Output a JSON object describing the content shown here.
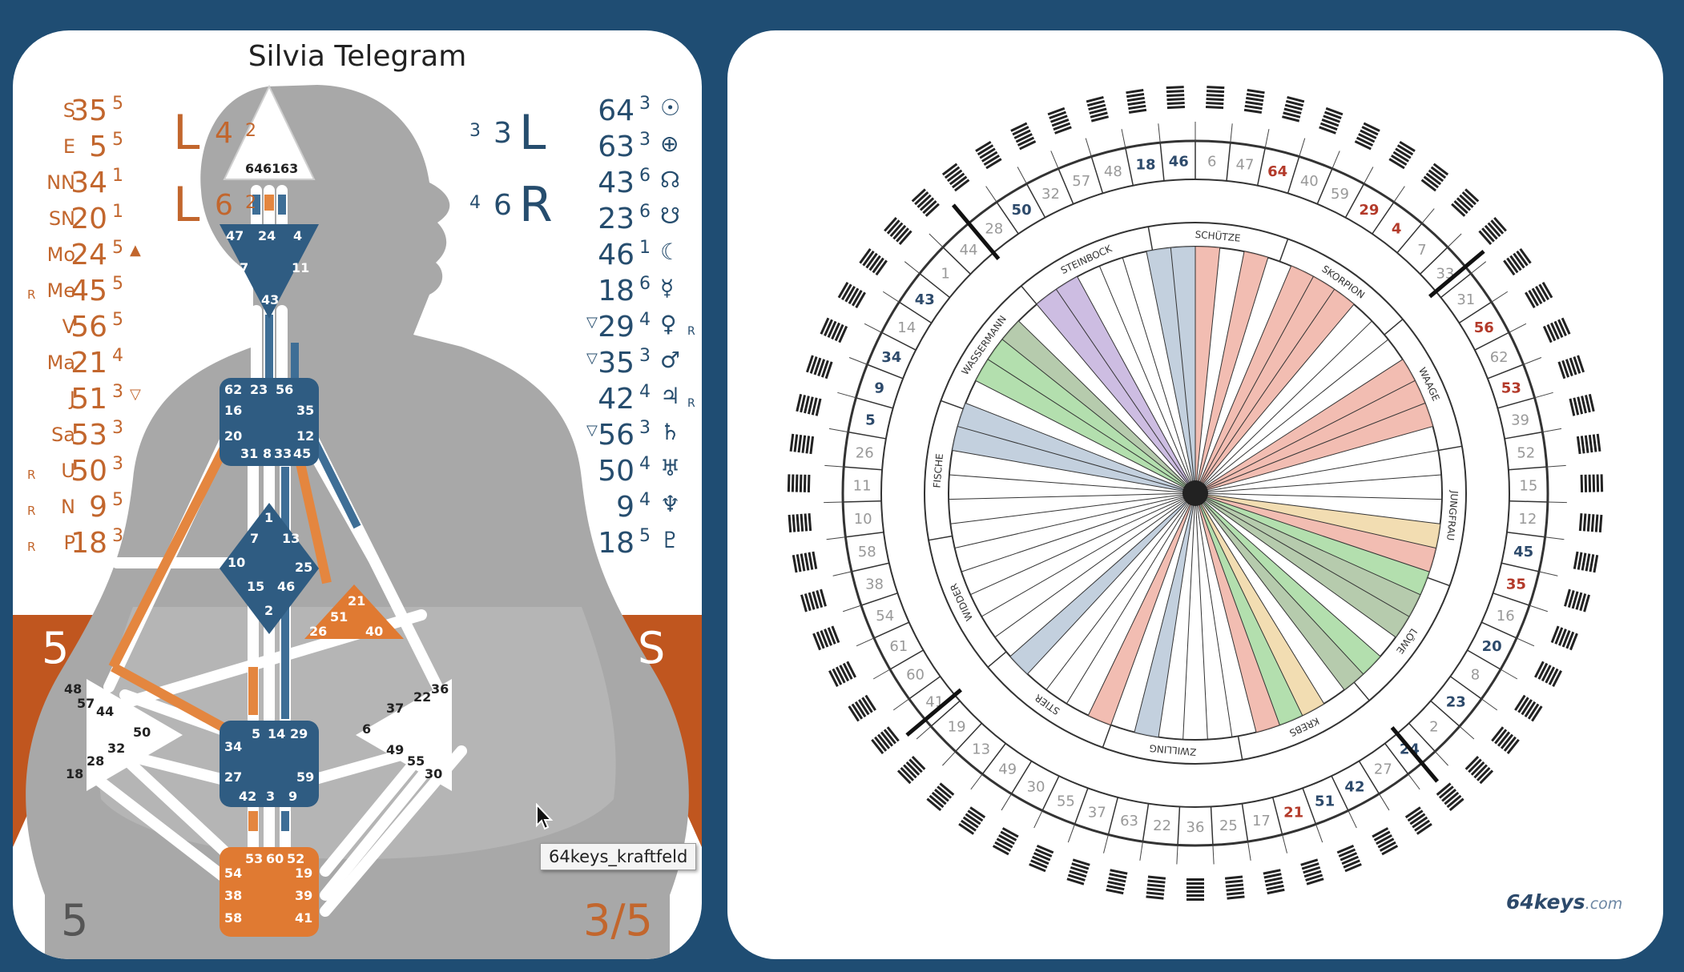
{
  "title": "Silvia Telegram",
  "colors": {
    "personality": "#264d6e",
    "design": "#c2662d",
    "orange_band": "#c0561f",
    "body_grey": "#9a9a9a",
    "background": "#1f4d73"
  },
  "design_column": [
    {
      "prefix": "",
      "planet": "S",
      "gate": "35",
      "line": "5",
      "mark": ""
    },
    {
      "prefix": "",
      "planet": "E",
      "gate": "5",
      "line": "5",
      "mark": ""
    },
    {
      "prefix": "",
      "planet": "NN",
      "gate": "34",
      "line": "1",
      "mark": ""
    },
    {
      "prefix": "",
      "planet": "SN",
      "gate": "20",
      "line": "1",
      "mark": ""
    },
    {
      "prefix": "",
      "planet": "Mo",
      "gate": "24",
      "line": "5",
      "mark": "▲"
    },
    {
      "prefix": "R",
      "planet": "Me",
      "gate": "45",
      "line": "5",
      "mark": ""
    },
    {
      "prefix": "",
      "planet": "V",
      "gate": "56",
      "line": "5",
      "mark": ""
    },
    {
      "prefix": "",
      "planet": "Ma",
      "gate": "21",
      "line": "4",
      "mark": ""
    },
    {
      "prefix": "",
      "planet": "J",
      "gate": "51",
      "line": "3",
      "mark": "▽"
    },
    {
      "prefix": "",
      "planet": "Sa",
      "gate": "53",
      "line": "3",
      "mark": ""
    },
    {
      "prefix": "R",
      "planet": "U",
      "gate": "50",
      "line": "3",
      "mark": ""
    },
    {
      "prefix": "R",
      "planet": "N",
      "gate": "9",
      "line": "5",
      "mark": ""
    },
    {
      "prefix": "R",
      "planet": "P",
      "gate": "18",
      "line": "3",
      "mark": ""
    }
  ],
  "personality_column": [
    {
      "mark": "",
      "gate": "64",
      "line": "3",
      "symbol": "☉",
      "suffix": ""
    },
    {
      "mark": "",
      "gate": "63",
      "line": "3",
      "symbol": "⊕",
      "suffix": ""
    },
    {
      "mark": "",
      "gate": "43",
      "line": "6",
      "symbol": "☊",
      "suffix": ""
    },
    {
      "mark": "",
      "gate": "23",
      "line": "6",
      "symbol": "☋",
      "suffix": ""
    },
    {
      "mark": "",
      "gate": "46",
      "line": "1",
      "symbol": "☾",
      "suffix": ""
    },
    {
      "mark": "",
      "gate": "18",
      "line": "6",
      "symbol": "☿",
      "suffix": ""
    },
    {
      "mark": "▽",
      "gate": "29",
      "line": "4",
      "symbol": "♀",
      "suffix": "R"
    },
    {
      "mark": "▽",
      "gate": "35",
      "line": "3",
      "symbol": "♂",
      "suffix": ""
    },
    {
      "mark": "",
      "gate": "42",
      "line": "4",
      "symbol": "♃",
      "suffix": "R"
    },
    {
      "mark": "▽",
      "gate": "56",
      "line": "3",
      "symbol": "♄",
      "suffix": ""
    },
    {
      "mark": "",
      "gate": "50",
      "line": "4",
      "symbol": "♅",
      "suffix": ""
    },
    {
      "mark": "",
      "gate": "9",
      "line": "4",
      "symbol": "♆",
      "suffix": ""
    },
    {
      "mark": "",
      "gate": "18",
      "line": "5",
      "symbol": "♇",
      "suffix": ""
    }
  ],
  "variables": {
    "design": [
      {
        "arrow": "L",
        "tone": "4",
        "base": "2"
      },
      {
        "arrow": "L",
        "tone": "6",
        "base": "2"
      }
    ],
    "personality": [
      {
        "base": "3",
        "tone": "3",
        "arrow": "L"
      },
      {
        "base": "4",
        "tone": "6",
        "arrow": "R"
      }
    ]
  },
  "corner_labels": {
    "top_left": "5",
    "top_right": "S",
    "bottom_left": "5",
    "bottom_right": "3/5"
  },
  "centers": {
    "head": [
      "64",
      "61",
      "63"
    ],
    "ajna": [
      "47",
      "24",
      "4",
      "17",
      "11",
      "43"
    ],
    "throat": [
      "62",
      "23",
      "56",
      "16",
      "35",
      "20",
      "12",
      "31",
      "8",
      "33",
      "45"
    ],
    "g": [
      "1",
      "7",
      "13",
      "10",
      "25",
      "15",
      "46",
      "2"
    ],
    "ego": [
      "21",
      "51",
      "26",
      "40"
    ],
    "spleen": [
      "48",
      "57",
      "44",
      "50",
      "32",
      "28",
      "18"
    ],
    "solar_plexus": [
      "36",
      "22",
      "37",
      "6",
      "49",
      "55",
      "30"
    ],
    "sacral": [
      "5",
      "14",
      "29",
      "34",
      "27",
      "59",
      "42",
      "3",
      "9"
    ],
    "root": [
      "53",
      "60",
      "52",
      "54",
      "19",
      "38",
      "39",
      "58",
      "41"
    ]
  },
  "tooltip": "64keys_kraftfeld",
  "wheel": {
    "gate_ring": [
      "5",
      "9",
      "34",
      "14",
      "43",
      "1",
      "44",
      "28",
      "50",
      "32",
      "57",
      "48",
      "18",
      "46",
      "6",
      "47",
      "64",
      "40",
      "59",
      "29",
      "4",
      "7",
      "33",
      "31",
      "56",
      "62",
      "53",
      "39",
      "52",
      "15",
      "12",
      "45",
      "35",
      "16",
      "20",
      "8",
      "23",
      "2",
      "24",
      "27",
      "42",
      "51",
      "21",
      "17",
      "25",
      "36",
      "22",
      "63",
      "37",
      "55",
      "30",
      "49",
      "13",
      "19",
      "41",
      "60",
      "61",
      "54",
      "38",
      "58",
      "10",
      "11",
      "26"
    ],
    "signs": [
      "SCHÜTZE",
      "SKORPION",
      "WAAGE",
      "JUNGFRAU",
      "LÖWE",
      "KREBS",
      "ZWILLING",
      "STIER",
      "WIDDER",
      "FISCHE",
      "WASSERMANN",
      "STEINBOCK"
    ],
    "brand_main": "64keys",
    "brand_suffix": ".com"
  }
}
